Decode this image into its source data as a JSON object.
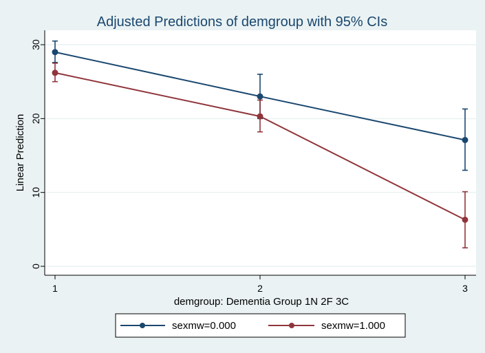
{
  "chart_data": {
    "type": "line",
    "title": "Adjusted Predictions of demgroup with 95% CIs",
    "xlabel": "demgroup: Dementia Group 1N 2F 3C",
    "ylabel": "Linear Prediction",
    "x": [
      1,
      2,
      3
    ],
    "x_ticks": [
      "1",
      "2",
      "3"
    ],
    "y_ticks": [
      "0",
      "10",
      "20",
      "30"
    ],
    "xlim": [
      1,
      3
    ],
    "ylim": [
      0,
      30
    ],
    "grid": true,
    "legend_position": "bottom",
    "series": [
      {
        "name": "sexmw=0.000",
        "color": "#1a476f",
        "values": [
          29.0,
          23.0,
          17.1
        ],
        "ci_low": [
          27.6,
          20.0,
          13.0
        ],
        "ci_high": [
          30.5,
          26.0,
          21.3
        ]
      },
      {
        "name": "sexmw=1.000",
        "color": "#90353b",
        "values": [
          26.2,
          20.3,
          6.3
        ],
        "ci_low": [
          25.0,
          18.2,
          2.5
        ],
        "ci_high": [
          27.5,
          22.5,
          10.1
        ]
      }
    ]
  }
}
